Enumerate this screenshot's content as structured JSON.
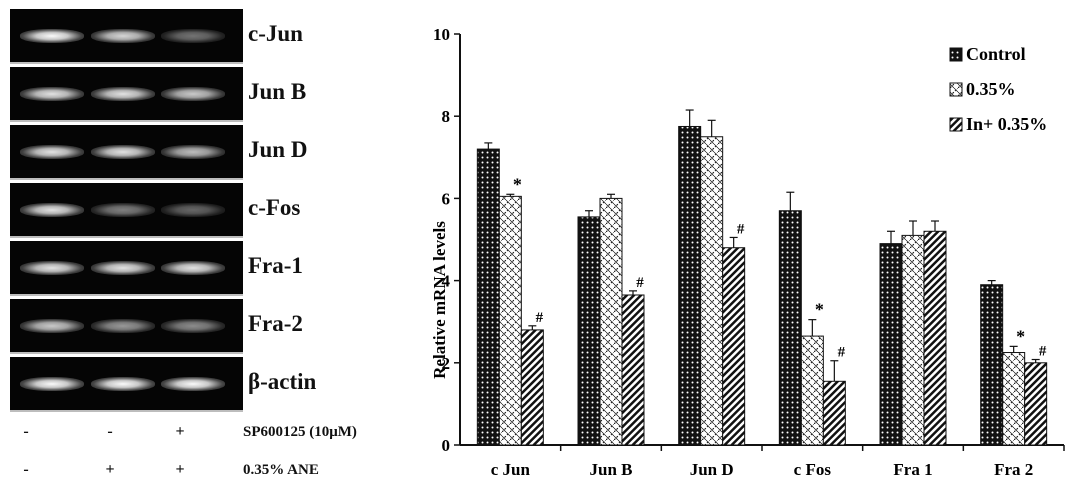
{
  "gel": {
    "genes": [
      {
        "label": "c-Jun",
        "intensity": [
          1.0,
          0.85,
          0.45
        ]
      },
      {
        "label": "Jun B",
        "intensity": [
          0.9,
          0.9,
          0.8
        ]
      },
      {
        "label": "Jun D",
        "intensity": [
          0.9,
          0.9,
          0.75
        ]
      },
      {
        "label": "c-Fos",
        "intensity": [
          0.9,
          0.5,
          0.4
        ]
      },
      {
        "label": "Fra-1",
        "intensity": [
          0.9,
          0.9,
          0.9
        ]
      },
      {
        "label": "Fra-2",
        "intensity": [
          0.8,
          0.6,
          0.55
        ]
      },
      {
        "label": "β-actin",
        "intensity": [
          1.0,
          1.0,
          1.0
        ]
      }
    ],
    "treatments": [
      {
        "label": "SP600125 (10μM)",
        "signs": [
          "-",
          "-",
          "+"
        ]
      },
      {
        "label": "0.35% ANE",
        "signs": [
          "-",
          "+",
          "+"
        ]
      }
    ]
  },
  "chart_data": {
    "type": "bar",
    "ylabel": "Relative mRNA levels",
    "xlabel": "",
    "ylim": [
      0,
      10
    ],
    "yticks": [
      0,
      2,
      4,
      6,
      8,
      10
    ],
    "categories": [
      "c Jun",
      "Jun B",
      "Jun D",
      "c Fos",
      "Fra 1",
      "Fra 2"
    ],
    "series": [
      {
        "name": "Control",
        "pattern": "dots",
        "values": [
          7.2,
          5.55,
          7.75,
          5.7,
          4.9,
          3.9
        ],
        "errors": [
          0.15,
          0.15,
          0.4,
          0.45,
          0.3,
          0.1
        ],
        "annotations": [
          "",
          "",
          "",
          "",
          "",
          ""
        ]
      },
      {
        "name": "0.35%",
        "pattern": "zigzag",
        "values": [
          6.05,
          6.0,
          7.5,
          2.65,
          5.1,
          2.25
        ],
        "errors": [
          0.05,
          0.1,
          0.4,
          0.4,
          0.35,
          0.15
        ],
        "annotations": [
          "*",
          "",
          "",
          "*",
          "",
          "*"
        ]
      },
      {
        "name": "In+ 0.35%",
        "pattern": "stripes",
        "values": [
          2.8,
          3.65,
          4.8,
          1.55,
          5.2,
          2.0
        ],
        "errors": [
          0.1,
          0.1,
          0.25,
          0.5,
          0.25,
          0.08
        ],
        "annotations": [
          "#",
          "#",
          "#",
          "#",
          "",
          "#"
        ]
      }
    ],
    "legend": {
      "position": "top-right"
    },
    "grid": false
  }
}
